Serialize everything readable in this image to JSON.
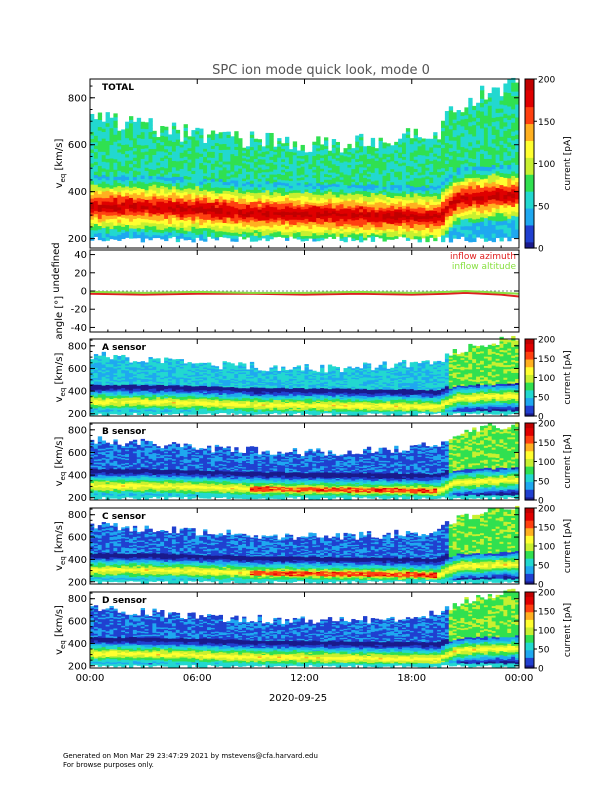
{
  "title": "SPC ion mode quick look, mode 0",
  "colors": {
    "colormap": [
      "#1a1a8c",
      "#2040d0",
      "#1fa8f0",
      "#22d8d0",
      "#30e050",
      "#c8f030",
      "#ffff30",
      "#ffb020",
      "#ff4010",
      "#e00000",
      "#c00000"
    ],
    "azimuth": "#e02020",
    "altitude": "#88e040"
  },
  "x_axis": {
    "ticks": [
      "00:00",
      "06:00",
      "12:00",
      "18:00",
      "00:00"
    ],
    "date": "2020-09-25"
  },
  "chart_data": [
    {
      "type": "heatmap",
      "panel": "total",
      "label": "TOTAL",
      "ylabel": "v",
      "ylabel_sub": "eq",
      "ylabel_unit": "[km/s]",
      "y_ticks": [
        "200",
        "400",
        "600",
        "800"
      ],
      "ylim": [
        160,
        880
      ],
      "colorbar_label": "current [pA]",
      "colorbar_ticks": [
        "0",
        "50",
        "100",
        "150",
        "200"
      ],
      "clim": [
        0,
        200
      ],
      "core_speed_kms": [
        [
          0,
          330
        ],
        [
          3,
          330
        ],
        [
          6,
          320
        ],
        [
          9,
          305
        ],
        [
          12,
          300
        ],
        [
          15,
          295
        ],
        [
          18,
          290
        ],
        [
          19.5,
          285
        ],
        [
          20.5,
          360
        ],
        [
          22,
          370
        ],
        [
          24,
          380
        ]
      ],
      "max_speed_kms": [
        [
          0,
          720
        ],
        [
          3,
          680
        ],
        [
          6,
          640
        ],
        [
          9,
          620
        ],
        [
          12,
          600
        ],
        [
          15,
          610
        ],
        [
          18,
          640
        ],
        [
          19.5,
          660
        ],
        [
          20.5,
          760
        ],
        [
          22,
          820
        ],
        [
          24,
          860
        ]
      ]
    },
    {
      "type": "line",
      "panel": "angle",
      "ylabel": "angle [°]",
      "y_ticks": [
        "-40",
        "-20",
        "0",
        "20",
        "40"
      ],
      "ylim": [
        -45,
        45
      ],
      "series": [
        {
          "name": "inflow azimuth",
          "x": [
            0,
            3,
            6,
            9,
            12,
            15,
            18,
            20,
            21,
            22,
            23,
            24
          ],
          "values": [
            -3,
            -4,
            -3,
            -3,
            -4,
            -3,
            -4,
            -3,
            -2,
            -3,
            -4,
            -6
          ]
        },
        {
          "name": "inflow altitude",
          "x": [
            0,
            3,
            6,
            9,
            12,
            15,
            18,
            20,
            21,
            22,
            23,
            24
          ],
          "values": [
            -1,
            -2,
            -1,
            -2,
            -2,
            -1,
            -2,
            -1,
            0,
            -1,
            -2,
            -3
          ]
        }
      ]
    },
    {
      "type": "heatmap",
      "panel": "A",
      "label": "A sensor",
      "ylabel": "v",
      "ylabel_sub": "eq",
      "ylabel_unit": "[km/s]",
      "y_ticks": [
        "200",
        "400",
        "600",
        "800"
      ],
      "ylim": [
        180,
        860
      ],
      "colorbar_label": "current [pA]",
      "colorbar_ticks": [
        "0",
        "50",
        "100",
        "150",
        "200"
      ],
      "clim": [
        0,
        200
      ]
    },
    {
      "type": "heatmap",
      "panel": "B",
      "label": "B sensor",
      "ylabel": "v",
      "ylabel_sub": "eq",
      "ylabel_unit": "[km/s]",
      "y_ticks": [
        "200",
        "400",
        "600",
        "800"
      ],
      "ylim": [
        180,
        860
      ],
      "colorbar_label": "current [pA]",
      "colorbar_ticks": [
        "0",
        "50",
        "100",
        "150",
        "200"
      ],
      "clim": [
        0,
        200
      ]
    },
    {
      "type": "heatmap",
      "panel": "C",
      "label": "C sensor",
      "ylabel": "v",
      "ylabel_sub": "eq",
      "ylabel_unit": "[km/s]",
      "y_ticks": [
        "200",
        "400",
        "600",
        "800"
      ],
      "ylim": [
        180,
        860
      ],
      "colorbar_label": "current [pA]",
      "colorbar_ticks": [
        "0",
        "50",
        "100",
        "150",
        "200"
      ],
      "clim": [
        0,
        200
      ]
    },
    {
      "type": "heatmap",
      "panel": "D",
      "label": "D sensor",
      "ylabel": "v",
      "ylabel_sub": "eq",
      "ylabel_unit": "[km/s]",
      "y_ticks": [
        "200",
        "400",
        "600",
        "800"
      ],
      "ylim": [
        180,
        860
      ],
      "colorbar_label": "current [pA]",
      "colorbar_ticks": [
        "0",
        "50",
        "100",
        "150",
        "200"
      ],
      "clim": [
        0,
        200
      ]
    }
  ],
  "footer": {
    "line1": "Generated on Mon Mar 29 23:47:29 2021 by mstevens@cfa.harvard.edu",
    "line2": "For browse purposes only."
  }
}
